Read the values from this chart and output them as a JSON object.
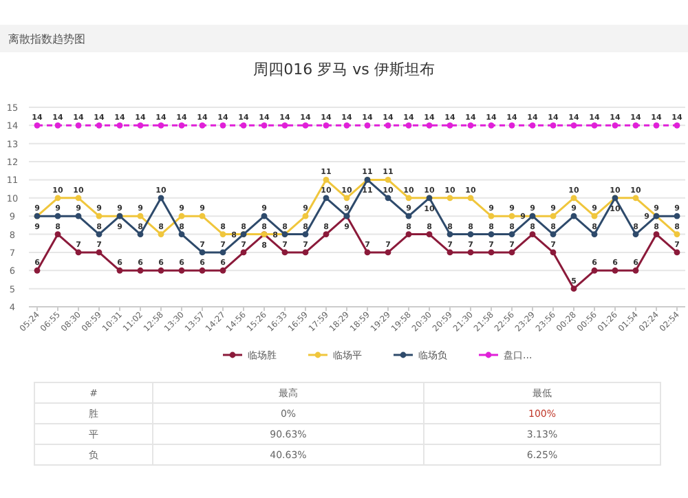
{
  "chart_data": {
    "type": "line",
    "title": "周四016 罗马 vs 伊斯坦布",
    "subtitle": "离散指数趋势图",
    "categories": [
      "05:24",
      "06:55",
      "08:30",
      "08:59",
      "10:31",
      "11:02",
      "12:58",
      "13:30",
      "13:57",
      "14:27",
      "14:56",
      "15:26",
      "16:33",
      "16:59",
      "17:59",
      "18:29",
      "18:59",
      "19:29",
      "19:58",
      "20:30",
      "20:59",
      "21:30",
      "21:58",
      "22:56",
      "23:29",
      "23:56",
      "00:28",
      "00:56",
      "01:26",
      "01:54",
      "02:24",
      "02:54"
    ],
    "series": [
      {
        "name": "临场胜",
        "color": "#8b1a3a",
        "values": [
          6,
          8,
          7,
          7,
          6,
          6,
          6,
          6,
          6,
          6,
          7,
          8,
          7,
          7,
          8,
          9,
          7,
          7,
          8,
          8,
          7,
          7,
          7,
          7,
          8,
          7,
          5,
          6,
          6,
          6,
          8,
          7
        ]
      },
      {
        "name": "临场平",
        "color": "#f0c63c",
        "values": [
          9,
          10,
          10,
          9,
          9,
          9,
          8,
          9,
          9,
          8,
          8,
          8,
          8,
          9,
          11,
          10,
          11,
          11,
          10,
          10,
          10,
          10,
          9,
          9,
          9,
          9,
          10,
          9,
          10,
          10,
          9,
          8
        ]
      },
      {
        "name": "临场负",
        "color": "#2e4a6b",
        "values": [
          9,
          9,
          9,
          8,
          9,
          8,
          10,
          8,
          7,
          7,
          8,
          9,
          8,
          8,
          10,
          9,
          11,
          10,
          9,
          10,
          8,
          8,
          8,
          8,
          9,
          8,
          9,
          8,
          10,
          8,
          9,
          9
        ]
      },
      {
        "name": "盘口...",
        "color": "#e020d8",
        "line_style": "dashed",
        "values": [
          14,
          14,
          14,
          14,
          14,
          14,
          14,
          14,
          14,
          14,
          14,
          14,
          14,
          14,
          14,
          14,
          14,
          14,
          14,
          14,
          14,
          14,
          14,
          14,
          14,
          14,
          14,
          14,
          14,
          14,
          14,
          14
        ]
      }
    ],
    "ylim": [
      4,
      15
    ],
    "yticks": [
      4,
      5,
      6,
      7,
      8,
      9,
      10,
      11,
      12,
      13,
      14,
      15
    ],
    "grid": "y",
    "legend": "bottom",
    "marker": "circle",
    "data_labels": true,
    "annotations": [
      "#",
      "最高",
      "最低",
      "胜",
      "0%",
      "100%",
      "平",
      "90.63%",
      "3.13%",
      "负",
      "40.63%",
      "6.25%"
    ]
  }
}
